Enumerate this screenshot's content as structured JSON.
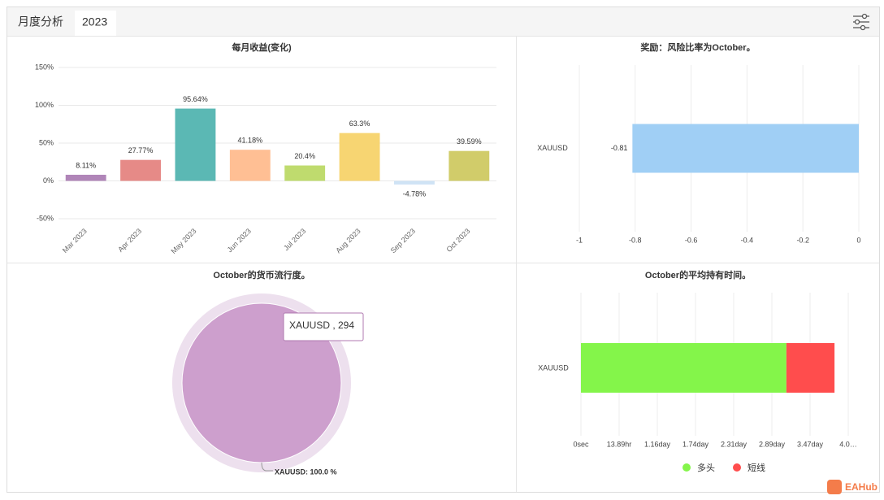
{
  "tabs": [
    "月度分析",
    "2023"
  ],
  "watermark": "EAHub",
  "chart_data": [
    {
      "type": "bar",
      "title": "每月收益(变化)",
      "categories": [
        "Mar 2023",
        "Apr 2023",
        "May 2023",
        "Jun 2023",
        "Jul 2023",
        "Aug 2023",
        "Sep 2023",
        "Oct 2023"
      ],
      "values": [
        8.11,
        27.77,
        95.64,
        41.18,
        20.4,
        63.3,
        -4.78,
        39.59
      ],
      "value_labels": [
        "8.11%",
        "27.77%",
        "95.64%",
        "41.18%",
        "20.4%",
        "63.3%",
        "-4.78%",
        "39.59%"
      ],
      "colors": [
        "#b085b8",
        "#e68a87",
        "#5bb8b4",
        "#ffbf94",
        "#bfdb6e",
        "#f7d572",
        "#cfe3f5",
        "#d1cc6a"
      ],
      "ylim": [
        -50,
        150
      ],
      "yticks": [
        {
          "value": -50,
          "label": "-50%"
        },
        {
          "value": 0,
          "label": "0%"
        },
        {
          "value": 50,
          "label": "50%"
        },
        {
          "value": 100,
          "label": "100%"
        },
        {
          "value": 150,
          "label": "150%"
        }
      ],
      "grid": true
    },
    {
      "type": "hbar",
      "title": "奖励：风险比率为October。",
      "categories": [
        "XAUUSD"
      ],
      "values": [
        -0.81
      ],
      "value_labels": [
        "-0.81"
      ],
      "color": "#a0cff5",
      "xlim": [
        -1,
        0
      ],
      "xticks": [
        -1,
        -0.8,
        -0.6,
        -0.4,
        -0.2,
        0
      ],
      "grid": true
    },
    {
      "type": "pie",
      "title": "October的货币流行度。",
      "categories": [
        "XAUUSD"
      ],
      "values": [
        294
      ],
      "colors": [
        "#cd9fcd"
      ],
      "data_labels": [
        "XAUUSD: 100.0 %"
      ],
      "tooltip": "XAUUSD , 294"
    },
    {
      "type": "stacked_hbar",
      "title": "October的平均持有时间。",
      "categories": [
        "XAUUSD"
      ],
      "series": [
        {
          "name": "多头",
          "color": "#84f54a",
          "values": [
            269000
          ]
        },
        {
          "name": "短线",
          "color": "#ff4d4d",
          "values": [
            63000
          ]
        }
      ],
      "xlim": [
        0,
        350000
      ],
      "xticks": [
        {
          "value": 0,
          "label": "0sec"
        },
        {
          "value": 50000,
          "label": "13.89hr"
        },
        {
          "value": 100000,
          "label": "1.16day"
        },
        {
          "value": 150000,
          "label": "1.74day"
        },
        {
          "value": 200000,
          "label": "2.31day"
        },
        {
          "value": 250000,
          "label": "2.89day"
        },
        {
          "value": 300000,
          "label": "3.47day"
        },
        {
          "value": 350000,
          "label": "4.0…"
        }
      ],
      "grid": true,
      "legend": "bottom"
    }
  ]
}
